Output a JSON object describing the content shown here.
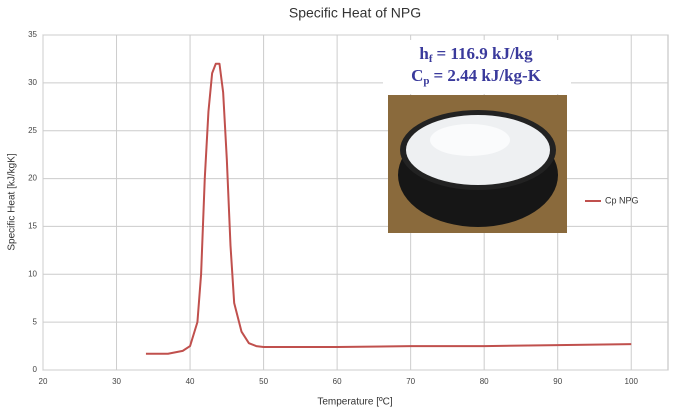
{
  "chart_data": {
    "type": "line",
    "title": "Specific Heat of NPG",
    "x_label": "Temperature [ºC]",
    "y_label": "Specific Heat [kJ/kgK]",
    "x": [
      34,
      37,
      39,
      40,
      41,
      41.5,
      42,
      42.5,
      43,
      43.5,
      44,
      44.5,
      45,
      45.5,
      46,
      47,
      48,
      49,
      50,
      60,
      70,
      80,
      90,
      100
    ],
    "series": [
      {
        "name": "Cp NPG",
        "color": "#c0504d",
        "values": [
          1.7,
          1.7,
          2.0,
          2.5,
          5,
          10,
          20,
          27,
          31,
          32,
          32,
          29,
          22,
          13,
          7,
          4,
          2.8,
          2.5,
          2.4,
          2.4,
          2.5,
          2.5,
          2.6,
          2.7
        ]
      }
    ],
    "xlim": [
      20,
      105
    ],
    "ylim": [
      0,
      35
    ],
    "xticks": [
      20,
      30,
      40,
      50,
      60,
      70,
      80,
      90,
      100
    ],
    "yticks": [
      0,
      5,
      10,
      15,
      20,
      25,
      30,
      35
    ],
    "grid": true,
    "legend": "right",
    "annotations": [
      {
        "symbol": "h",
        "subscript": "f",
        "text": "= 116.9 kJ/kg"
      },
      {
        "symbol": "C",
        "subscript": "p",
        "text": "=  2.44 kJ/kg-K"
      }
    ]
  }
}
